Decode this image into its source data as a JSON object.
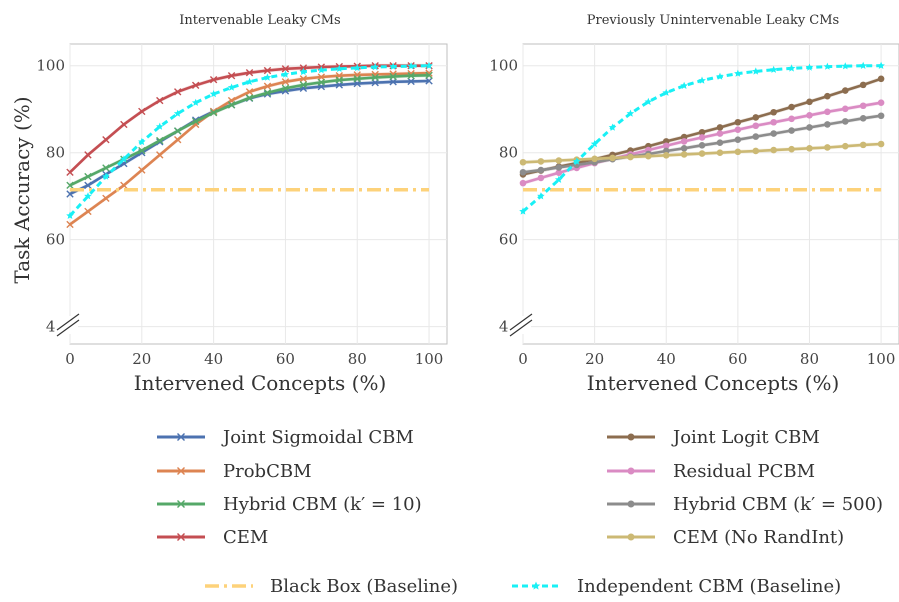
{
  "chart_data": [
    {
      "type": "line",
      "title": "Intervenable Leaky CMs",
      "xlabel": "Intervened Concepts (%)",
      "ylabel": "Task Accuracy (%)",
      "xlim": [
        0,
        105
      ],
      "ylim": [
        36,
        105
      ],
      "xticks": [
        "0",
        "20",
        "40",
        "60",
        "80",
        "100"
      ],
      "yticks": [
        "40",
        "60",
        "80",
        "100"
      ],
      "grid": true,
      "series": [
        {
          "name": "Joint Sigmoidal CBM",
          "color": "#4c72b0",
          "marker": "x",
          "x": [
            0,
            5,
            10,
            15,
            20,
            25,
            30,
            35,
            40,
            45,
            50,
            55,
            60,
            65,
            70,
            75,
            80,
            85,
            90,
            95,
            100
          ],
          "y": [
            70.5,
            72.5,
            75.0,
            77.5,
            80.0,
            82.5,
            85.0,
            87.5,
            89.5,
            91.0,
            92.5,
            93.5,
            94.2,
            94.8,
            95.2,
            95.6,
            95.9,
            96.1,
            96.3,
            96.4,
            96.5
          ]
        },
        {
          "name": "ProbCBM",
          "color": "#dd8452",
          "marker": "x",
          "x": [
            0,
            5,
            10,
            15,
            20,
            25,
            30,
            35,
            40,
            45,
            50,
            55,
            60,
            65,
            70,
            75,
            80,
            85,
            90,
            95,
            100
          ],
          "y": [
            63.5,
            66.5,
            69.5,
            72.5,
            76.0,
            79.5,
            83.0,
            86.5,
            89.5,
            92.0,
            94.0,
            95.3,
            96.3,
            97.0,
            97.4,
            97.7,
            97.9,
            98.0,
            98.1,
            98.2,
            98.3
          ]
        },
        {
          "name": "Hybrid CBM (k′ = 10)",
          "color": "#55a868",
          "marker": "x",
          "x": [
            0,
            5,
            10,
            15,
            20,
            25,
            30,
            35,
            40,
            45,
            50,
            55,
            60,
            65,
            70,
            75,
            80,
            85,
            90,
            95,
            100
          ],
          "y": [
            72.5,
            74.5,
            76.5,
            78.5,
            80.5,
            82.8,
            85.0,
            87.2,
            89.2,
            91.0,
            92.6,
            93.8,
            94.8,
            95.6,
            96.2,
            96.7,
            97.0,
            97.3,
            97.5,
            97.7,
            97.8
          ]
        },
        {
          "name": "CEM",
          "color": "#c44e52",
          "marker": "x",
          "x": [
            0,
            5,
            10,
            15,
            20,
            25,
            30,
            35,
            40,
            45,
            50,
            55,
            60,
            65,
            70,
            75,
            80,
            85,
            90,
            95,
            100
          ],
          "y": [
            75.5,
            79.5,
            83.0,
            86.5,
            89.5,
            92.0,
            94.0,
            95.5,
            96.8,
            97.7,
            98.4,
            98.9,
            99.3,
            99.5,
            99.7,
            99.8,
            99.9,
            100.0,
            100.0,
            100.0,
            100.0
          ]
        },
        {
          "name": "Black Box (Baseline)",
          "color": "#fdd27a",
          "style": "dashdot",
          "x": [
            0,
            100
          ],
          "y": [
            71.5,
            71.5
          ]
        },
        {
          "name": "Independent CBM (Baseline)",
          "color": "#19f0f5",
          "style": "dotted-marker",
          "x": [
            0,
            5,
            10,
            15,
            20,
            25,
            30,
            35,
            40,
            45,
            50,
            55,
            60,
            65,
            70,
            75,
            80,
            85,
            90,
            95,
            100
          ],
          "y": [
            65.5,
            70.0,
            74.5,
            78.5,
            82.5,
            86.0,
            89.0,
            91.5,
            93.5,
            95.0,
            96.3,
            97.3,
            98.0,
            98.6,
            99.0,
            99.3,
            99.5,
            99.7,
            99.8,
            99.9,
            100.0
          ]
        }
      ]
    },
    {
      "type": "line",
      "title": "Previously Unintervenable Leaky CMs",
      "xlabel": "Intervened Concepts (%)",
      "ylabel": "",
      "xlim": [
        0,
        105
      ],
      "ylim": [
        36,
        105
      ],
      "xticks": [
        "0",
        "20",
        "40",
        "60",
        "80",
        "100"
      ],
      "yticks": [
        "40",
        "60",
        "80",
        "100"
      ],
      "grid": true,
      "series": [
        {
          "name": "Joint Logit CBM",
          "color": "#8c6d4f",
          "marker": "o",
          "x": [
            0,
            5,
            10,
            15,
            20,
            25,
            30,
            35,
            40,
            45,
            50,
            55,
            60,
            65,
            70,
            75,
            80,
            85,
            90,
            95,
            100
          ],
          "y": [
            75.0,
            75.9,
            76.8,
            77.6,
            78.5,
            79.5,
            80.5,
            81.5,
            82.6,
            83.6,
            84.7,
            85.8,
            87.0,
            88.1,
            89.3,
            90.5,
            91.7,
            93.0,
            94.3,
            95.6,
            97.0
          ]
        },
        {
          "name": "Residual PCBM",
          "color": "#da8bc3",
          "marker": "o",
          "x": [
            0,
            5,
            10,
            15,
            20,
            25,
            30,
            35,
            40,
            45,
            50,
            55,
            60,
            65,
            70,
            75,
            80,
            85,
            90,
            95,
            100
          ],
          "y": [
            73.0,
            74.2,
            75.4,
            76.5,
            77.6,
            78.6,
            79.6,
            80.6,
            81.6,
            82.6,
            83.5,
            84.4,
            85.3,
            86.2,
            87.0,
            87.8,
            88.6,
            89.4,
            90.1,
            90.8,
            91.5
          ]
        },
        {
          "name": "Hybrid CBM (k′ = 500)",
          "color": "#8c8c8c",
          "marker": "o",
          "x": [
            0,
            5,
            10,
            15,
            20,
            25,
            30,
            35,
            40,
            45,
            50,
            55,
            60,
            65,
            70,
            75,
            80,
            85,
            90,
            95,
            100
          ],
          "y": [
            75.5,
            76.0,
            76.6,
            77.2,
            77.8,
            78.5,
            79.1,
            79.7,
            80.4,
            81.0,
            81.7,
            82.3,
            83.0,
            83.7,
            84.4,
            85.1,
            85.8,
            86.5,
            87.2,
            87.9,
            88.5
          ]
        },
        {
          "name": "CEM (No RandInt)",
          "color": "#ccb974",
          "marker": "o",
          "x": [
            0,
            5,
            10,
            15,
            20,
            25,
            30,
            35,
            40,
            45,
            50,
            55,
            60,
            65,
            70,
            75,
            80,
            85,
            90,
            95,
            100
          ],
          "y": [
            77.8,
            78.0,
            78.2,
            78.4,
            78.6,
            78.8,
            79.0,
            79.2,
            79.4,
            79.6,
            79.8,
            80.0,
            80.2,
            80.4,
            80.6,
            80.8,
            81.0,
            81.2,
            81.5,
            81.8,
            82.0
          ]
        },
        {
          "name": "Black Box (Baseline)",
          "color": "#fdd27a",
          "style": "dashdot",
          "x": [
            0,
            100
          ],
          "y": [
            71.5,
            71.5
          ]
        },
        {
          "name": "Independent CBM (Baseline)",
          "color": "#19f0f5",
          "style": "dotted-marker",
          "x": [
            0,
            5,
            10,
            15,
            20,
            25,
            30,
            35,
            40,
            45,
            50,
            55,
            60,
            65,
            70,
            75,
            80,
            85,
            90,
            95,
            100
          ],
          "y": [
            66.5,
            70.0,
            73.8,
            78.0,
            82.0,
            85.8,
            89.0,
            91.7,
            93.8,
            95.4,
            96.6,
            97.5,
            98.2,
            98.7,
            99.1,
            99.4,
            99.6,
            99.8,
            99.9,
            100.0,
            100.0
          ]
        }
      ]
    }
  ],
  "legend": {
    "rows": [
      [
        "Joint Sigmoidal CBM",
        "Joint Logit CBM"
      ],
      [
        "ProbCBM",
        "Residual PCBM"
      ],
      [
        "Hybrid CBM (k′ = 10)",
        "Hybrid CBM (k′ = 500)"
      ],
      [
        "CEM",
        "CEM (No RandInt)"
      ]
    ],
    "baselines": [
      "Black Box (Baseline)",
      "Independent CBM (Baseline)"
    ]
  }
}
